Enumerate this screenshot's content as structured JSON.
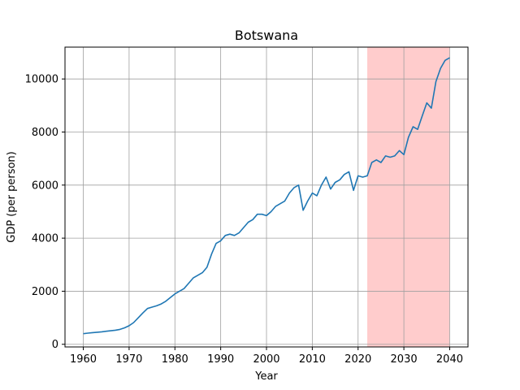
{
  "chart_data": {
    "type": "line",
    "title": "Botswana",
    "xlabel": "Year",
    "ylabel": "GDP (per person)",
    "xlim": [
      1956,
      2044
    ],
    "ylim": [
      -100,
      11200
    ],
    "xticks": [
      1960,
      1970,
      1980,
      1990,
      2000,
      2010,
      2020,
      2030,
      2040
    ],
    "yticks": [
      0,
      2000,
      4000,
      6000,
      8000,
      10000
    ],
    "grid": true,
    "line_color": "#1f77b4",
    "highlight": {
      "x_start": 2022,
      "x_end": 2040,
      "color": "#ffcccc"
    },
    "series": [
      {
        "x": [
          1960,
          1961,
          1962,
          1963,
          1964,
          1965,
          1966,
          1967,
          1968,
          1969,
          1970,
          1971,
          1972,
          1973,
          1974,
          1975,
          1976,
          1977,
          1978,
          1979,
          1980,
          1981,
          1982,
          1983,
          1984,
          1985,
          1986,
          1987,
          1988,
          1989,
          1990,
          1991,
          1992,
          1993,
          1994,
          1995,
          1996,
          1997,
          1998,
          1999,
          2000,
          2001,
          2002,
          2003,
          2004,
          2005,
          2006,
          2007,
          2008,
          2009,
          2010,
          2011,
          2012,
          2013,
          2014,
          2015,
          2016,
          2017,
          2018,
          2019,
          2020,
          2021,
          2022,
          2023,
          2024,
          2025,
          2026,
          2027,
          2028,
          2029,
          2030,
          2031,
          2032,
          2033,
          2034,
          2035,
          2036,
          2037,
          2038,
          2039,
          2040
        ],
        "y": [
          400,
          420,
          440,
          455,
          470,
          490,
          510,
          530,
          560,
          620,
          700,
          820,
          1000,
          1180,
          1350,
          1400,
          1450,
          1520,
          1620,
          1760,
          1900,
          2000,
          2100,
          2300,
          2500,
          2600,
          2700,
          2900,
          3400,
          3800,
          3900,
          4100,
          4150,
          4100,
          4200,
          4400,
          4600,
          4700,
          4900,
          4900,
          4850,
          5000,
          5200,
          5300,
          5400,
          5700,
          5900,
          6000,
          5050,
          5400,
          5700,
          5600,
          6000,
          6300,
          5850,
          6100,
          6200,
          6400,
          6500,
          5800,
          6350,
          6300,
          6350,
          6850,
          6950,
          6850,
          7100,
          7050,
          7100,
          7300,
          7150,
          7800,
          8200,
          8100,
          8600,
          9100,
          8900,
          9900,
          10400,
          10700,
          10800
        ]
      }
    ]
  }
}
